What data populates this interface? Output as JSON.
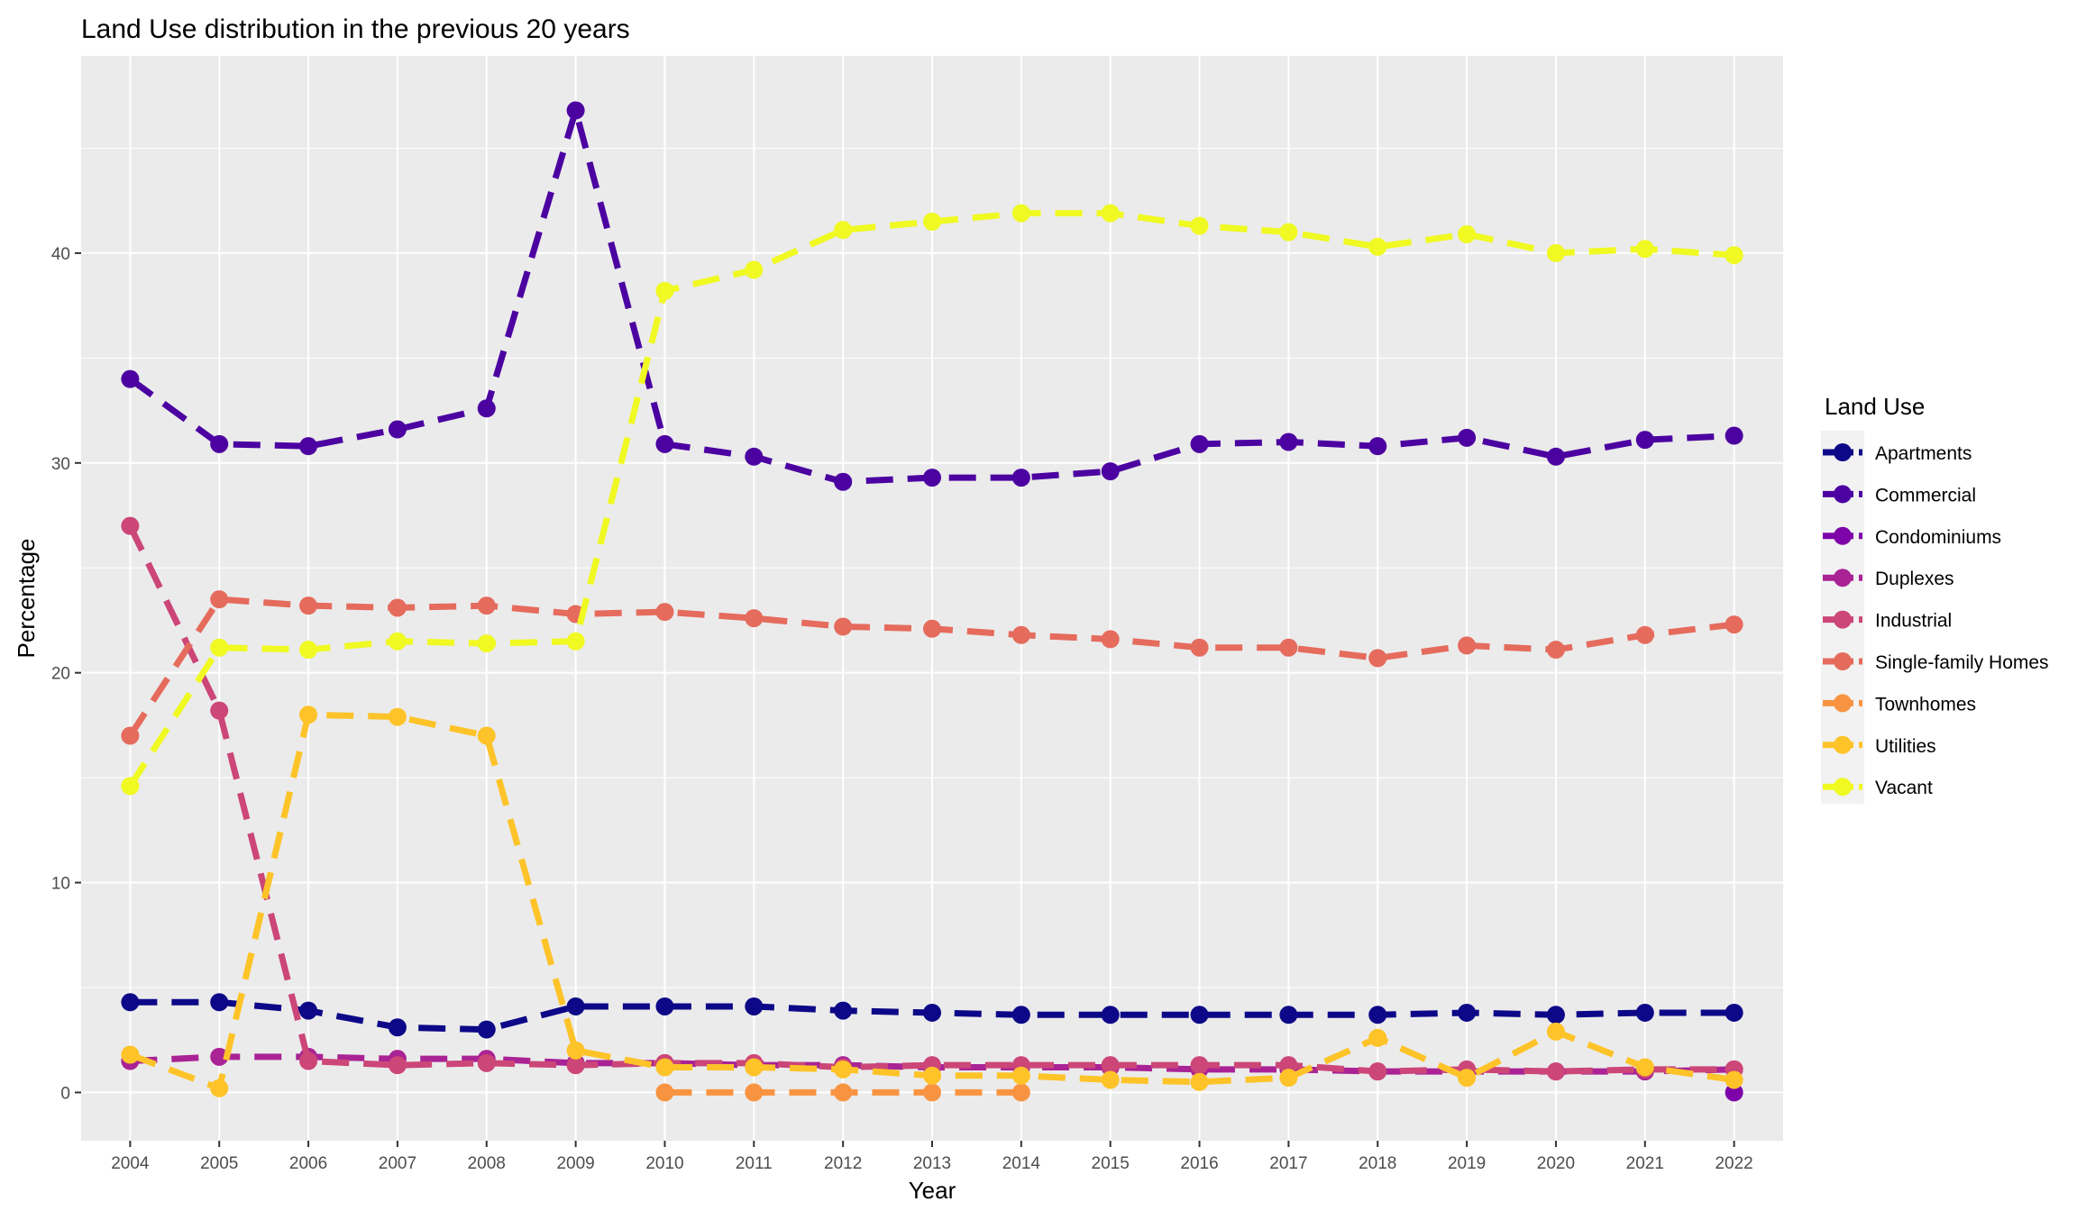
{
  "chart_data": {
    "type": "line",
    "title": "Land Use distribution in the previous 20 years",
    "xlabel": "Year",
    "ylabel": "Percentage",
    "x": [
      2004,
      2005,
      2006,
      2007,
      2008,
      2009,
      2010,
      2011,
      2012,
      2013,
      2014,
      2015,
      2016,
      2017,
      2018,
      2019,
      2020,
      2021,
      2022
    ],
    "x_tick_labels": [
      "2004",
      "2005",
      "2006",
      "2007",
      "2008",
      "2009",
      "2010",
      "2011",
      "2012",
      "2013",
      "2014",
      "2015",
      "2016",
      "2017",
      "2018",
      "2019",
      "2020",
      "2021",
      "2022"
    ],
    "ylim": [
      -2.3,
      49.4
    ],
    "y_ticks": [
      0,
      10,
      20,
      30,
      40
    ],
    "y_tick_labels": [
      "0",
      "10",
      "20",
      "30",
      "40"
    ],
    "grid": true,
    "line_style": "dashed",
    "panel_background": "#EBEBEB",
    "legend": {
      "title": "Land Use",
      "position": "right"
    },
    "series": [
      {
        "name": "Apartments",
        "color": "#0D0887",
        "values": [
          4.3,
          4.3,
          3.9,
          3.1,
          3.0,
          4.1,
          4.1,
          4.1,
          3.9,
          3.8,
          3.7,
          3.7,
          3.7,
          3.7,
          3.7,
          3.8,
          3.7,
          3.8,
          3.8
        ]
      },
      {
        "name": "Commercial",
        "color": "#4C02A1",
        "values": [
          34.0,
          30.9,
          30.8,
          31.6,
          32.6,
          46.8,
          30.9,
          30.3,
          29.1,
          29.3,
          29.3,
          29.6,
          30.9,
          31.0,
          30.8,
          31.2,
          30.3,
          31.1,
          31.3
        ]
      },
      {
        "name": "Condominiums",
        "color": "#7E03A8",
        "values": [
          null,
          null,
          null,
          null,
          null,
          null,
          null,
          null,
          null,
          null,
          null,
          null,
          null,
          null,
          null,
          null,
          null,
          null,
          0.0
        ]
      },
      {
        "name": "Duplexes",
        "color": "#A92395",
        "values": [
          1.5,
          1.7,
          1.7,
          1.6,
          1.6,
          1.4,
          1.4,
          1.3,
          1.3,
          1.2,
          1.2,
          1.2,
          1.1,
          1.1,
          1.0,
          1.0,
          1.0,
          1.0,
          1.1
        ]
      },
      {
        "name": "Industrial",
        "color": "#CC4678",
        "values": [
          27.0,
          18.2,
          1.5,
          1.3,
          1.4,
          1.3,
          1.4,
          1.4,
          1.2,
          1.3,
          1.3,
          1.3,
          1.3,
          1.3,
          1.0,
          1.1,
          1.0,
          1.1,
          1.1
        ]
      },
      {
        "name": "Single-family Homes",
        "color": "#E56B5D",
        "values": [
          17.0,
          23.5,
          23.2,
          23.1,
          23.2,
          22.8,
          22.9,
          22.6,
          22.2,
          22.1,
          21.8,
          21.6,
          21.2,
          21.2,
          20.7,
          21.3,
          21.1,
          21.8,
          22.3
        ]
      },
      {
        "name": "Townhomes",
        "color": "#F89441",
        "values": [
          null,
          null,
          null,
          null,
          null,
          null,
          0.0,
          0.0,
          0.0,
          0.0,
          0.0,
          null,
          null,
          null,
          null,
          null,
          null,
          null,
          null
        ]
      },
      {
        "name": "Utilities",
        "color": "#FDC328",
        "values": [
          1.8,
          0.2,
          18.0,
          17.9,
          17.0,
          2.0,
          1.2,
          1.2,
          1.1,
          0.8,
          0.8,
          0.6,
          0.5,
          0.7,
          2.6,
          0.7,
          2.9,
          1.2,
          0.6
        ]
      },
      {
        "name": "Vacant",
        "color": "#F0F921",
        "values": [
          14.6,
          21.2,
          21.1,
          21.5,
          21.4,
          21.5,
          38.2,
          39.2,
          41.1,
          41.5,
          41.9,
          41.9,
          41.3,
          41.0,
          40.3,
          40.9,
          40.0,
          40.2,
          39.9
        ]
      }
    ]
  }
}
